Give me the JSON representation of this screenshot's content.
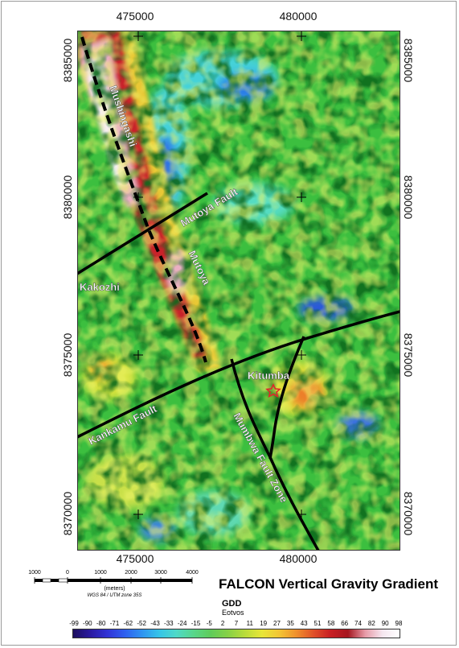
{
  "map": {
    "x_ticks": [
      "475000",
      "480000"
    ],
    "y_ticks": [
      "8385000",
      "8380000",
      "8375000",
      "8370000"
    ],
    "labels": {
      "mushingashi": "Mushingashi",
      "mutoya_fault": "Mutoya Fault",
      "mutoya": "Mutoya",
      "kakozhi": "Kakozhi",
      "kitumba": "Kitumba",
      "kankamu_fault": "Kankamu Fault",
      "mumbwa_fault_zone": "Mumbwa Fault Zone"
    },
    "colors": {
      "fault_line": "#000000",
      "label_text": "#ffffff",
      "marker": "#e0282a"
    }
  },
  "scale_bar": {
    "numbers": [
      "1000",
      "0",
      "1000",
      "2000",
      "3000",
      "4000"
    ],
    "units": "(meters)",
    "crs": "WGS 84 / UTM zone 35S"
  },
  "title": "FALCON Vertical Gravity Gradient",
  "legend": {
    "title": "GDD",
    "unit": "Eotvos",
    "labels": [
      "-99",
      "-90",
      "-80",
      "-71",
      "-62",
      "-52",
      "-43",
      "-33",
      "-24",
      "-15",
      "-5",
      "2",
      "7",
      "11",
      "19",
      "27",
      "35",
      "43",
      "51",
      "58",
      "66",
      "74",
      "82",
      "90",
      "98"
    ],
    "colors": [
      "#1c0f5e",
      "#2a1aa0",
      "#3133d6",
      "#2f5fef",
      "#2f93f1",
      "#36c4e8",
      "#4fd9c8",
      "#58d68b",
      "#5fcc5a",
      "#86d146",
      "#b9dc3a",
      "#e8e639",
      "#f3c534",
      "#ef8f2c",
      "#e0502a",
      "#c71e23",
      "#a51720",
      "#e79aa7",
      "#f5e6ef",
      "#ffffff"
    ]
  }
}
